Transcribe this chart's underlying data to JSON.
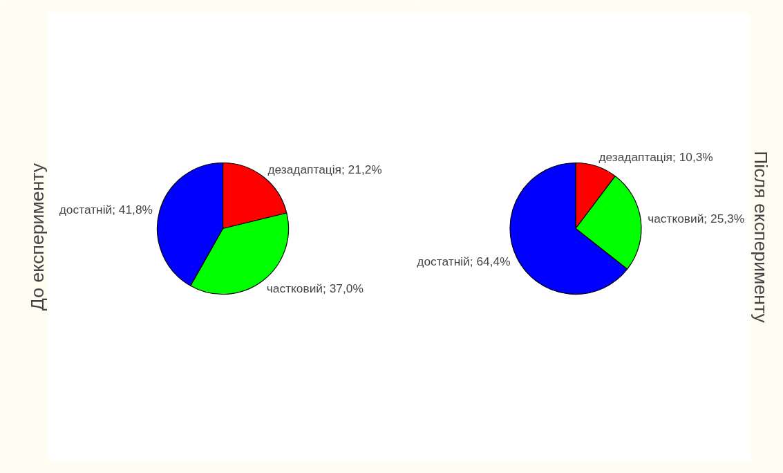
{
  "chart_data": [
    {
      "type": "pie",
      "ylabel": "До експерименту",
      "categories": [
        "дезадаптація",
        "частковий",
        "достатній"
      ],
      "values": [
        21.2,
        37.0,
        41.8
      ],
      "value_labels": [
        "21,2%",
        "37,0%",
        "41,8%"
      ],
      "colors": [
        "#ff0000",
        "#00ff00",
        "#0000ff"
      ]
    },
    {
      "type": "pie",
      "y2label": "Після експерименту",
      "categories": [
        "дезадаптація",
        "частковий",
        "достатній"
      ],
      "values": [
        10.3,
        25.3,
        64.4
      ],
      "value_labels": [
        "10,3%",
        "25,3%",
        "64,4%"
      ],
      "colors": [
        "#ff0000",
        "#00ff00",
        "#0000ff"
      ]
    }
  ]
}
